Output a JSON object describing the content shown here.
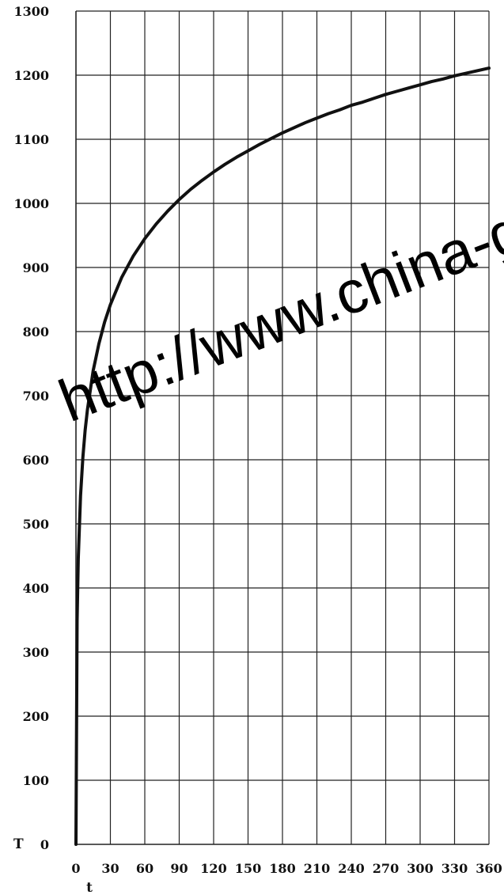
{
  "chart_data": {
    "type": "line",
    "xlabel": "t",
    "ylabel": "T",
    "xlim": [
      0,
      360
    ],
    "ylim": [
      0,
      1300
    ],
    "xticks": [
      0,
      30,
      60,
      90,
      120,
      150,
      180,
      210,
      240,
      270,
      300,
      330,
      360
    ],
    "yticks": [
      0,
      100,
      200,
      300,
      400,
      500,
      600,
      700,
      800,
      900,
      1000,
      1100,
      1200,
      1300
    ],
    "grid": true,
    "series": [
      {
        "x": [
          0,
          1,
          2,
          4,
          6,
          8,
          10,
          15,
          20,
          25,
          30,
          40,
          50,
          60,
          70,
          80,
          90,
          100,
          110,
          120,
          130,
          140,
          150,
          160,
          170,
          180,
          190,
          200,
          210,
          220,
          230,
          240,
          250,
          260,
          270,
          280,
          290,
          300,
          310,
          320,
          330,
          340,
          350,
          360
        ],
        "y": [
          0,
          349,
          445,
          544,
          603,
          646,
          678,
          739,
          781,
          815,
          842,
          885,
          918,
          945,
          968,
          988,
          1006,
          1022,
          1036,
          1049,
          1061,
          1072,
          1082,
          1092,
          1101,
          1110,
          1118,
          1126,
          1133,
          1140,
          1146,
          1153,
          1158,
          1164,
          1170,
          1175,
          1180,
          1185,
          1190,
          1194,
          1199,
          1203,
          1207,
          1211
        ]
      }
    ]
  },
  "watermark": {
    "text": "http://www.china-gb"
  }
}
